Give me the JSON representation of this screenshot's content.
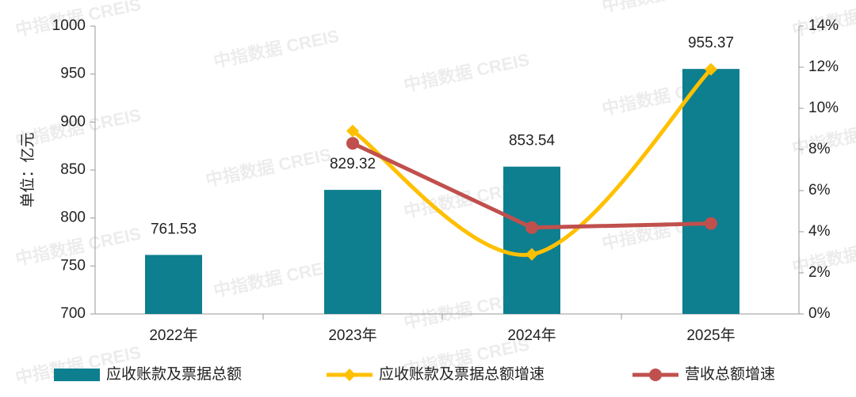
{
  "chart_data": {
    "type": "bar_line",
    "watermark": "中指数据 CREIS",
    "y_axis_label": "单位：亿元",
    "categories": [
      "2022年",
      "2023年",
      "2024年",
      "2025年"
    ],
    "ylim": [
      700,
      1000
    ],
    "yticks": [
      700,
      750,
      800,
      850,
      900,
      950,
      1000
    ],
    "y2lim": [
      0,
      14
    ],
    "y2ticks": [
      {
        "value": 0,
        "label": "0%"
      },
      {
        "value": 2,
        "label": "2%"
      },
      {
        "value": 4,
        "label": "4%"
      },
      {
        "value": 6,
        "label": "6%"
      },
      {
        "value": 8,
        "label": "8%"
      },
      {
        "value": 10,
        "label": "10%"
      },
      {
        "value": 12,
        "label": "12%"
      },
      {
        "value": 14,
        "label": "14%"
      }
    ],
    "legend": "bottom",
    "series": [
      {
        "name": "应收账款及票据总额",
        "type": "bar",
        "color": "#0e7f8f",
        "values": [
          761.53,
          829.32,
          853.54,
          955.37
        ]
      },
      {
        "name": "应收账款及票据总额增速",
        "type": "line",
        "smooth": true,
        "marker": "diamond",
        "axis": "y2",
        "color": "#ffc000",
        "values": [
          null,
          8.9,
          2.9,
          11.9
        ]
      },
      {
        "name": "营收总额增速",
        "type": "line",
        "smooth": false,
        "marker": "circle",
        "axis": "y2",
        "color": "#c0504d",
        "values": [
          null,
          8.3,
          4.2,
          4.4
        ]
      }
    ]
  }
}
